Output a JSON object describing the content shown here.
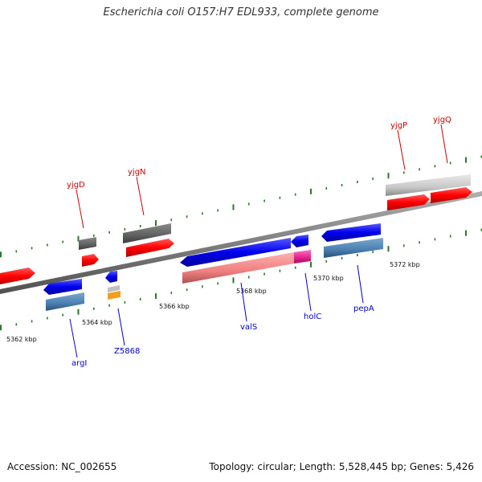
{
  "title": "Escherichia coli O157:H7 EDL933, complete genome",
  "accession": "Accession: NC_002655",
  "summary": "Topology: circular; Length: 5,528,445 bp; Genes: 5,426",
  "colors": {
    "backbone": "#7f7f7f",
    "forward_cds": "#ff0000",
    "reverse_cds": "#0000ee",
    "forward_rna_grey": "#c8c8c8",
    "forward_dark": "#606060",
    "reverse_steel": "#4a7fb0",
    "reverse_pink": "#f08080",
    "reverse_magenta": "#e0208a",
    "reverse_orange": "#f0a020",
    "tick": "#2a7a2a",
    "label_forward": "#cc0000",
    "label_reverse": "#0000cc"
  },
  "axis": {
    "tick_labels": [
      "5362 kbp",
      "5364 kbp",
      "5366 kbp",
      "5368 kbp",
      "5370 kbp",
      "5372 kbp"
    ]
  },
  "genes": {
    "forward_labels": [
      "yjgD",
      "yjgN",
      "yjgP",
      "yjgQ"
    ],
    "reverse_labels": [
      "argI",
      "Z5868",
      "valS",
      "holC",
      "pepA"
    ]
  }
}
